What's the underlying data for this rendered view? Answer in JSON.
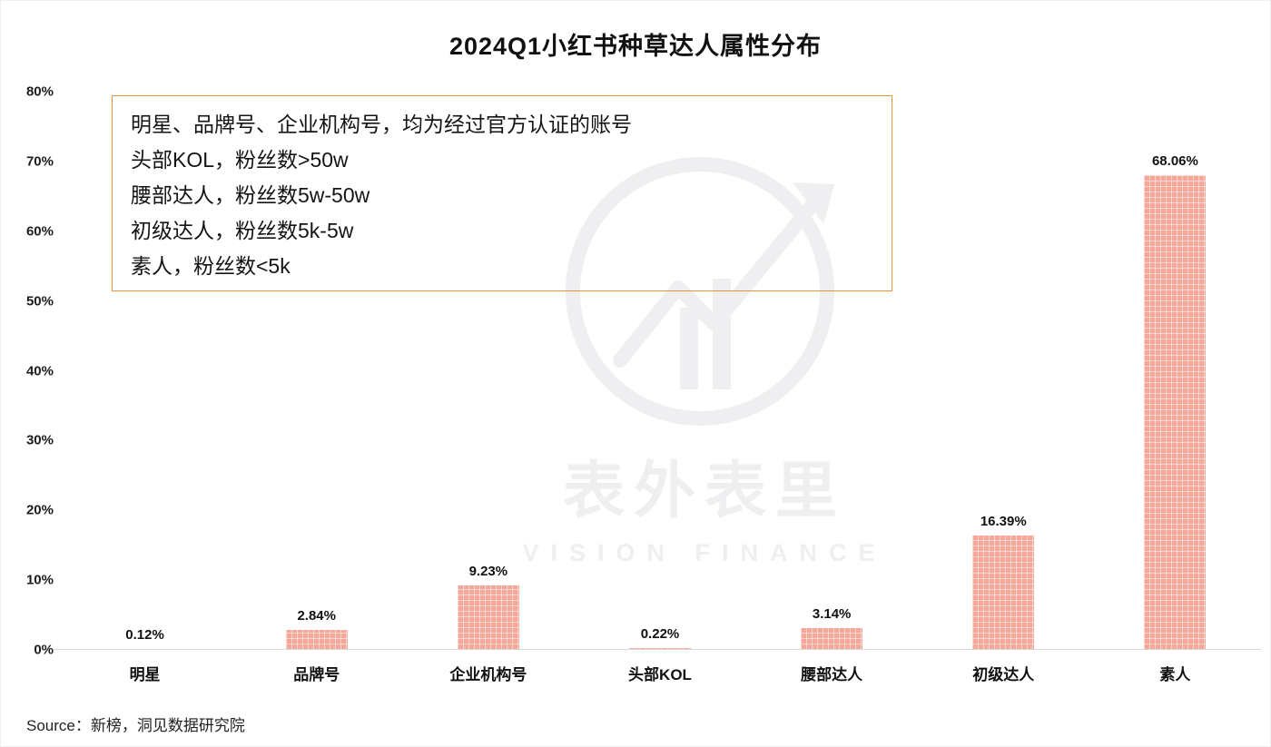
{
  "chart_data": {
    "type": "bar",
    "title": "2024Q1小红书种草达人属性分布",
    "categories": [
      "明星",
      "品牌号",
      "企业机构号",
      "头部KOL",
      "腰部达人",
      "初级达人",
      "素人"
    ],
    "values": [
      0.12,
      2.84,
      9.23,
      0.22,
      3.14,
      16.39,
      68.06
    ],
    "value_labels": [
      "0.12%",
      "2.84%",
      "9.23%",
      "0.22%",
      "3.14%",
      "16.39%",
      "68.06%"
    ],
    "xlabel": "",
    "ylabel": "",
    "ylim": [
      0,
      80
    ],
    "ytick_labels": [
      "0%",
      "10%",
      "20%",
      "30%",
      "40%",
      "50%",
      "60%",
      "70%",
      "80%"
    ],
    "bar_color": "#f5a79a",
    "grid": false,
    "legend_position": "none"
  },
  "annotation": {
    "border_color": "#e8913e",
    "lines": [
      "明星、品牌号、企业机构号，均为经过官方认证的账号",
      "头部KOL，粉丝数>50w",
      "腰部达人，粉丝数5w-50w",
      "初级达人，粉丝数5k-5w",
      "素人，粉丝数<5k"
    ]
  },
  "watermark": {
    "text": "表外表里",
    "subtext": "VISION FINANCE"
  },
  "source": {
    "label": "Source：新榜，洞见数据研究院"
  }
}
